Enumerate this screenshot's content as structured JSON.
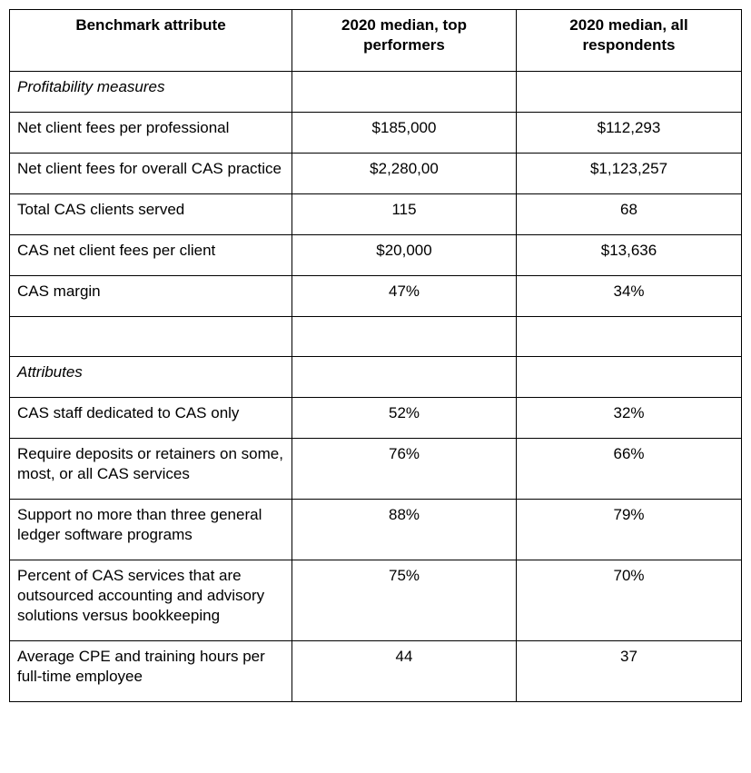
{
  "table": {
    "headers": {
      "attribute": "Benchmark attribute",
      "top": "2020 median, top performers",
      "all": "2020 median, all respondents"
    },
    "rows": [
      {
        "type": "section",
        "attribute": "Profitability measures",
        "top": "",
        "all": ""
      },
      {
        "type": "data",
        "attribute": "Net client fees per professional",
        "top": "$185,000",
        "all": "$112,293"
      },
      {
        "type": "data",
        "attribute": "Net client fees for overall CAS practice",
        "top": "$2,280,00",
        "all": "$1,123,257"
      },
      {
        "type": "data",
        "attribute": "Total CAS clients served",
        "top": "115",
        "all": "68"
      },
      {
        "type": "data",
        "attribute": "CAS net client fees per client",
        "top": "$20,000",
        "all": "$13,636"
      },
      {
        "type": "data",
        "attribute": "CAS margin",
        "top": "47%",
        "all": "34%"
      },
      {
        "type": "empty",
        "attribute": "",
        "top": "",
        "all": ""
      },
      {
        "type": "section",
        "attribute": "Attributes",
        "top": "",
        "all": ""
      },
      {
        "type": "data",
        "attribute": "CAS staff dedicated to CAS only",
        "top": "52%",
        "all": "32%"
      },
      {
        "type": "data",
        "attribute": "Require deposits or retainers on some, most, or all CAS services",
        "top": "76%",
        "all": "66%"
      },
      {
        "type": "data",
        "attribute": "Support no more than three general ledger software programs",
        "top": "88%",
        "all": "79%"
      },
      {
        "type": "data",
        "attribute": "Percent of CAS services that are outsourced accounting and advisory solutions versus bookkeeping",
        "top": "75%",
        "all": "70%"
      },
      {
        "type": "data",
        "attribute": "Average CPE and training hours per full-time employee",
        "top": "44",
        "all": "37"
      }
    ]
  },
  "colors": {
    "border": "#000000",
    "text": "#000000",
    "background": "#ffffff"
  }
}
